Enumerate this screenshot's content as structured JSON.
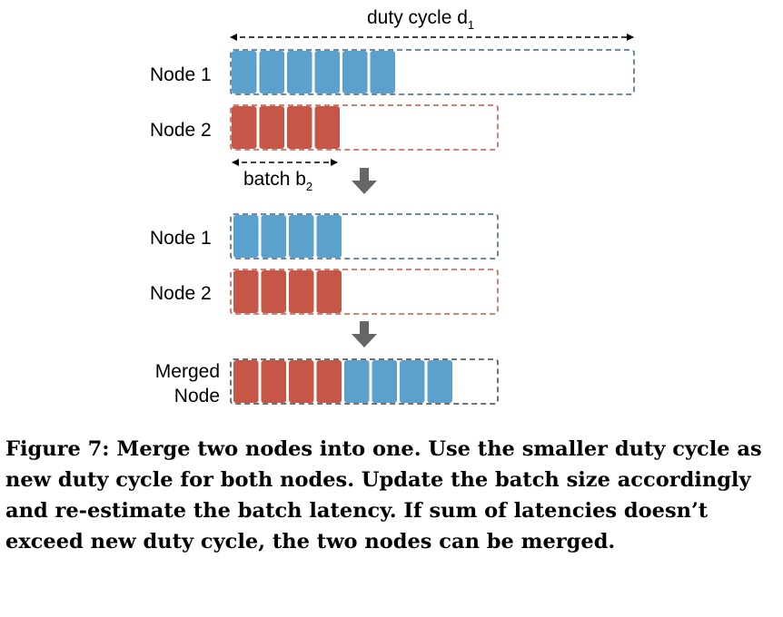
{
  "colors": {
    "blue_fill": "#5ba1cd",
    "blue_border": "#3d6287",
    "red_fill": "#c65647",
    "red_border": "#c65647",
    "arrow": "#666666",
    "merged_border": "#444444"
  },
  "labels": {
    "duty_cycle_text": "duty cycle d",
    "duty_cycle_sub": "1",
    "batch_text": "batch b",
    "batch_sub": "2",
    "node1": "Node 1",
    "node2": "Node 2",
    "merged_line1": "Merged",
    "merged_line2": "Node"
  },
  "stages": {
    "before": {
      "node1_blocks": 6,
      "node2_blocks": 4
    },
    "after": {
      "node1_blocks": 4,
      "node2_blocks": 4
    },
    "merged": {
      "red_blocks": 4,
      "blue_blocks": 4
    }
  },
  "caption": "Figure 7: Merge two nodes into one. Use the smaller duty cycle as new duty cycle for both nodes. Update the batch size accordingly and re-estimate the batch latency. If sum of latencies doesn’t exceed new duty cycle, the two nodes can be merged."
}
